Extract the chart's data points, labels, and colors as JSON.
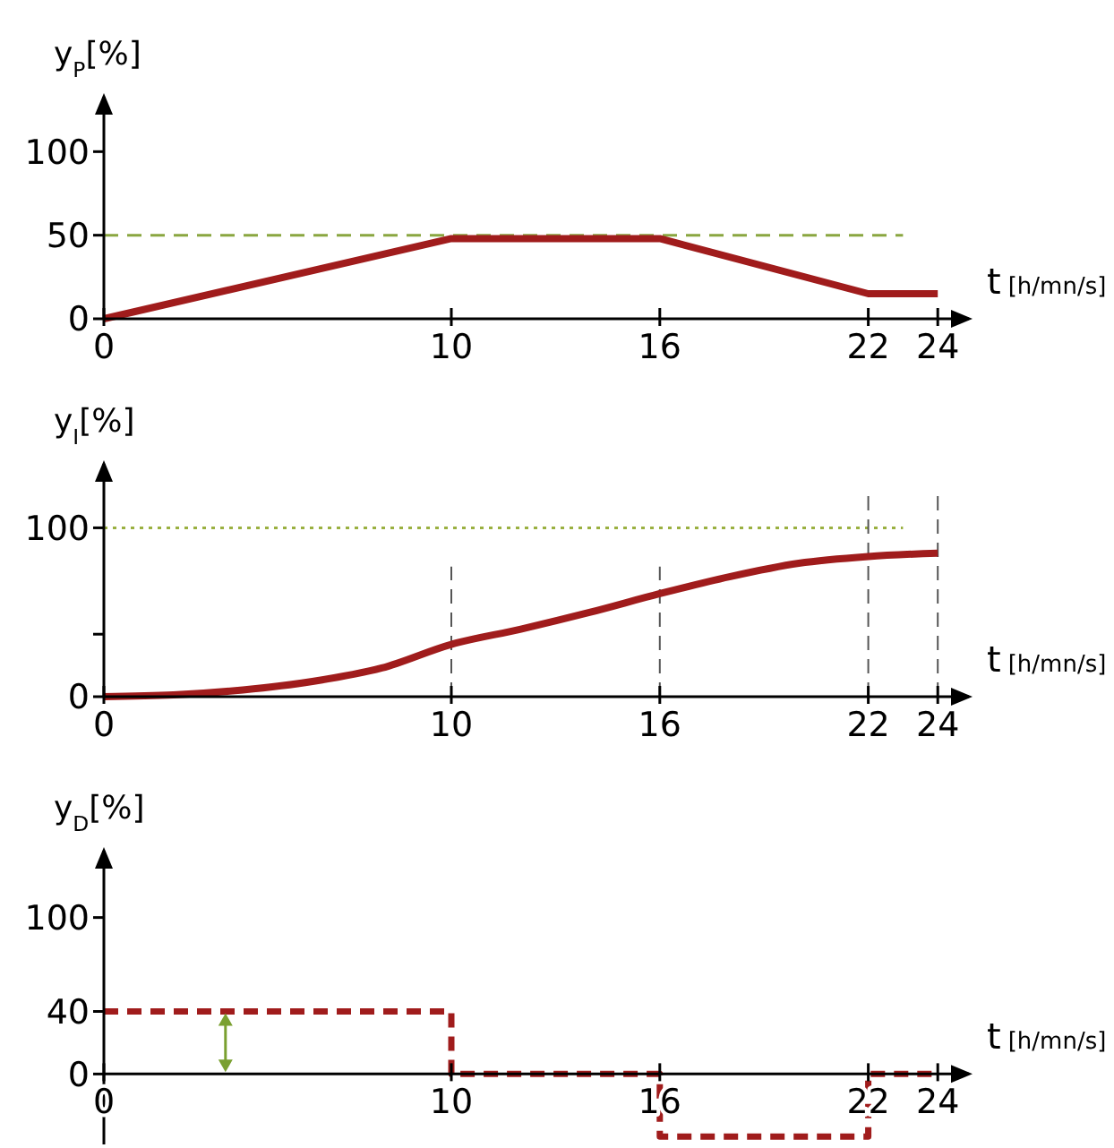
{
  "chart_data": [
    {
      "type": "line",
      "ylabel": "y$_{P}$[%]",
      "xlabel": "t [h/mn/s]",
      "x": [
        0,
        10,
        16,
        22,
        24
      ],
      "xlim": [
        0,
        25
      ],
      "xticks": [
        0,
        10,
        16,
        22,
        24
      ],
      "ylim": [
        0,
        135
      ],
      "yticks": [
        0,
        50,
        100
      ],
      "marker": "none",
      "line_style": "solid",
      "series": [
        {
          "color": "#a01c1c",
          "values": [
            0,
            48,
            48,
            15,
            15
          ]
        }
      ],
      "ref_lines": [
        {
          "axis": "y",
          "value": 50,
          "color": "#8aa640",
          "line_style": "dashed"
        }
      ]
    },
    {
      "type": "line",
      "ylabel": "y$_{I}$[%]",
      "xlabel": "t [h/mn/s]",
      "x": [
        0,
        2,
        4,
        6,
        8,
        10,
        12,
        14,
        16,
        18,
        20,
        22,
        24
      ],
      "xlim": [
        0,
        25
      ],
      "xticks": [
        0,
        10,
        16,
        22,
        24
      ],
      "ylim": [
        0,
        140
      ],
      "yticks": [
        0,
        {
          "value": 37,
          "label": null
        },
        100
      ],
      "marker": "none",
      "line_style": "solid",
      "series": [
        {
          "color": "#a01c1c",
          "values": [
            0,
            1,
            4,
            9,
            17,
            31,
            40,
            50,
            61,
            71,
            79,
            83,
            85
          ]
        }
      ],
      "ref_lines": [
        {
          "axis": "y",
          "value": 100,
          "color": "#9ab040",
          "line_style": "dotted"
        },
        {
          "axis": "x",
          "value": 10,
          "color": "#555555",
          "line_style": "dashed"
        },
        {
          "axis": "x",
          "value": 16,
          "color": "#555555",
          "line_style": "dashed"
        },
        {
          "axis": "x",
          "value": 22,
          "color": "#555555",
          "line_style": "dashed"
        },
        {
          "axis": "x",
          "value": 24,
          "color": "#555555",
          "line_style": "dashed"
        }
      ]
    },
    {
      "type": "step",
      "ylabel": "y$_{D}$[%]",
      "xlabel": "t [h/mn/s]",
      "x": [
        0,
        10,
        16,
        22,
        24
      ],
      "xlim": [
        0,
        25
      ],
      "xticks": [
        0,
        10,
        16,
        22,
        24
      ],
      "ylim": [
        -45,
        145
      ],
      "yticks": [
        0,
        40,
        100
      ],
      "marker": "none",
      "line_style": "dashed",
      "series": [
        {
          "color": "#a01c1c",
          "values": [
            40,
            0,
            -40,
            0,
            0
          ]
        }
      ]
    }
  ]
}
